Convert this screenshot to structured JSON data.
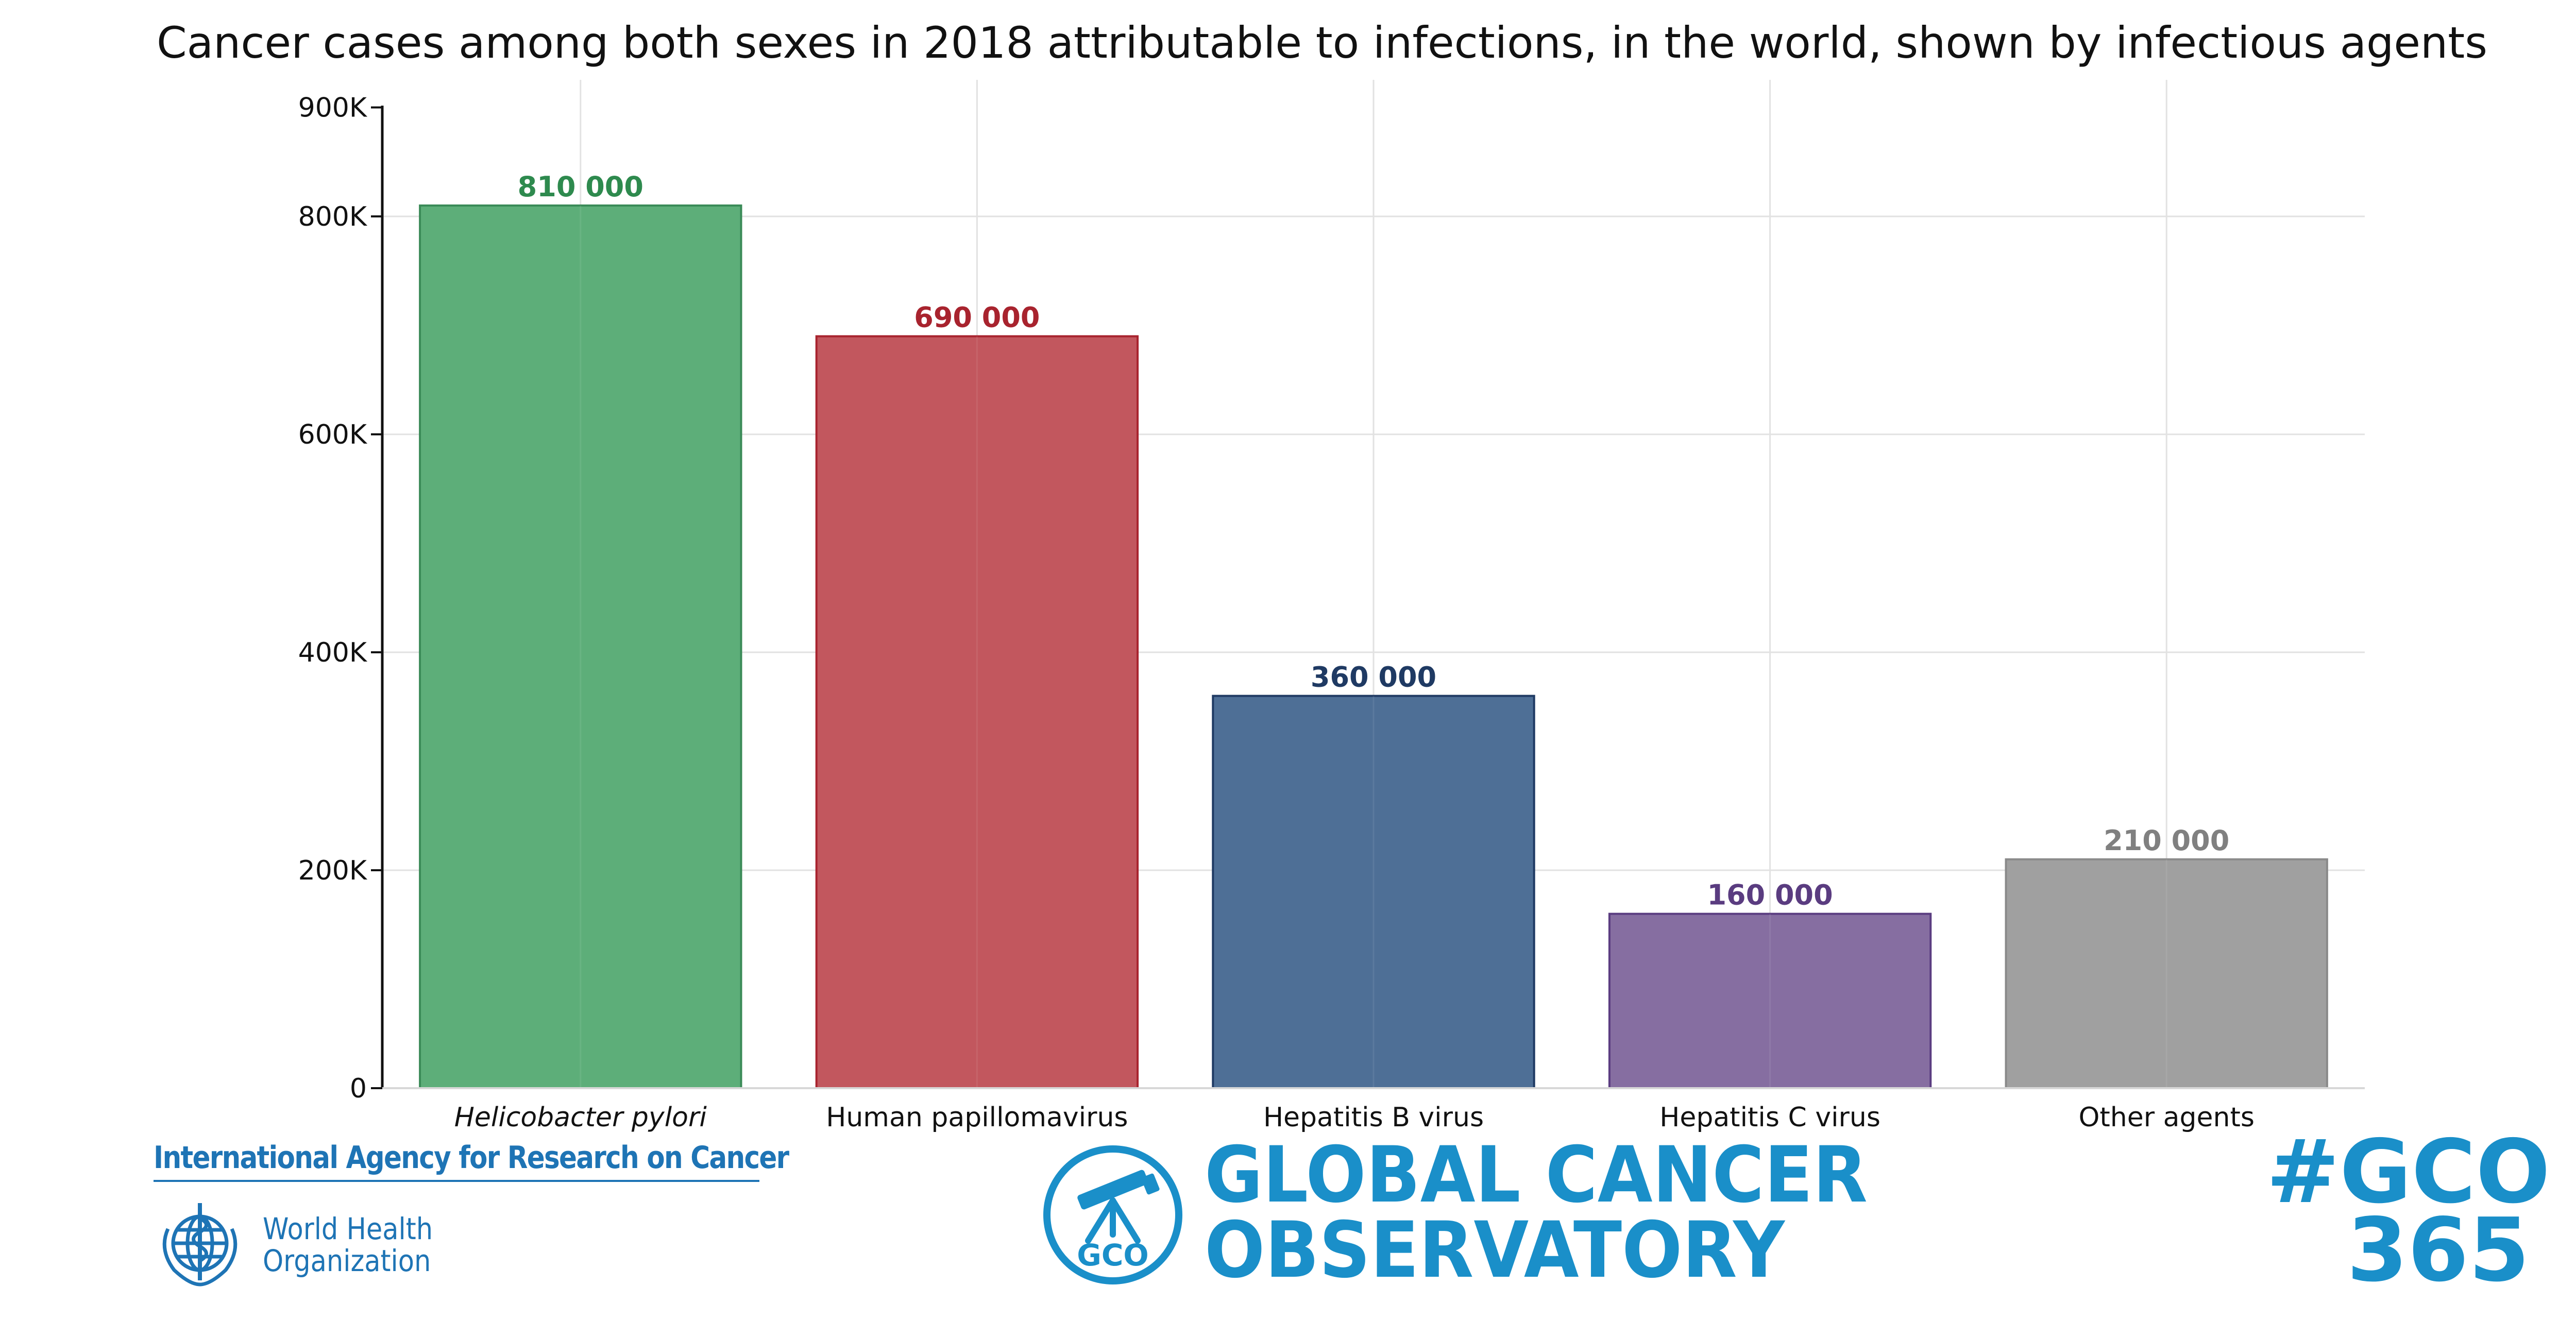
{
  "chart_data": {
    "type": "bar",
    "title": "Cancer cases among both sexes in 2018 attributable to infections, in the world, shown by infectious agents",
    "xlabel": "",
    "ylabel": "",
    "ylim": [
      0,
      900000
    ],
    "yticks": [
      {
        "value": 0,
        "label": "0"
      },
      {
        "value": 200000,
        "label": "200K"
      },
      {
        "value": 400000,
        "label": "400K"
      },
      {
        "value": 600000,
        "label": "600K"
      },
      {
        "value": 800000,
        "label": "800K"
      },
      {
        "value": 900000,
        "label": "900K"
      }
    ],
    "grid": true,
    "categories": [
      "Helicobacter pylori",
      "Human papillomavirus",
      "Hepatitis B virus",
      "Hepatitis C virus",
      "Other agents"
    ],
    "values": [
      810000,
      690000,
      360000,
      160000,
      210000
    ],
    "data_labels": [
      "810 000",
      "690 000",
      "360 000",
      "160 000",
      "210 000"
    ],
    "italic_categories": [
      true,
      false,
      false,
      false,
      false
    ],
    "colors": [
      "#5dae79",
      "#c2575e",
      "#4e6f96",
      "#866ea1",
      "#a0a0a0"
    ],
    "edge_colors": [
      "#3a8a57",
      "#a8232e",
      "#1f3a63",
      "#5a3c80",
      "#8a8a8a"
    ],
    "label_colors": [
      "#2e8a4e",
      "#a8232e",
      "#1f3a63",
      "#5a3c80",
      "#808080"
    ]
  },
  "footer": {
    "iarc": "International Agency for Research on Cancer",
    "who_line1": "World Health",
    "who_line2": "Organization",
    "gco_badge": "GCO",
    "gco_line1": "GLOBAL CANCER",
    "gco_line2": "OBSERVATORY",
    "hashtag_line1": "#GCO",
    "hashtag_line2": "365",
    "brand_color": "#1a8fc9",
    "iarc_color": "#1e74b5"
  }
}
